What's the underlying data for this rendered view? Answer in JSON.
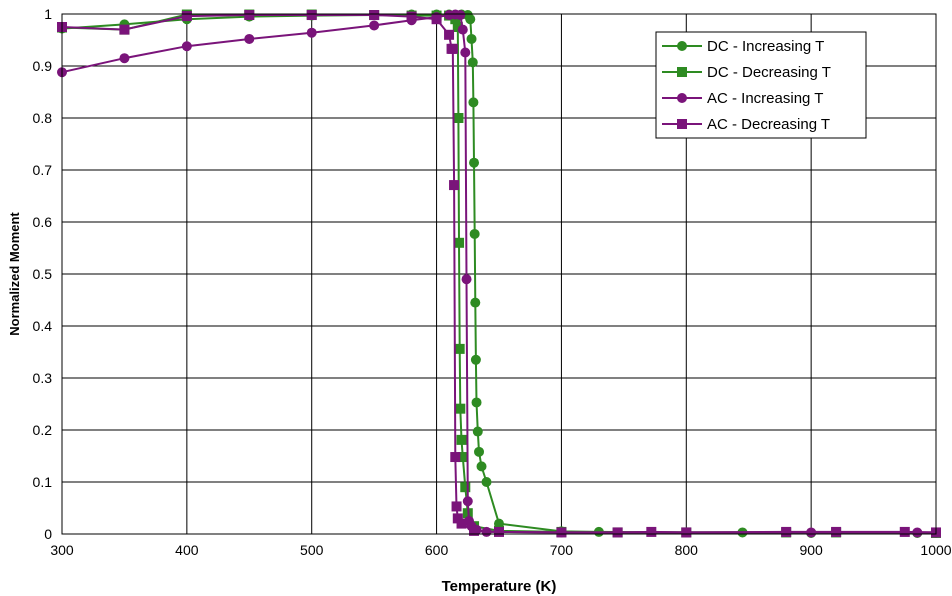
{
  "chart_data": {
    "type": "line",
    "xlabel": "Temperature (K)",
    "ylabel": "Normalized Moment",
    "xlim": [
      300,
      1000
    ],
    "ylim": [
      0,
      1
    ],
    "xticks": [
      "300",
      "400",
      "500",
      "600",
      "700",
      "800",
      "900",
      "1000"
    ],
    "yticks": [
      "0",
      "0.1",
      "0.2",
      "0.3",
      "0.4",
      "0.5",
      "0.6",
      "0.7",
      "0.8",
      "0.9",
      "1"
    ],
    "grid": true,
    "legend_position": "top-right",
    "series": [
      {
        "name": "DC - Increasing T",
        "color": "#2e8b22",
        "marker": "circle",
        "x": [
          300,
          350,
          400,
          450,
          500,
          550,
          580,
          600,
          610,
          620,
          625,
          627,
          628,
          629,
          629.5,
          630,
          630.5,
          631,
          631.5,
          632,
          633,
          634,
          636,
          640,
          650,
          700,
          730,
          800,
          845,
          900,
          985,
          1000
        ],
        "y": [
          0.972,
          0.98,
          0.99,
          0.995,
          0.997,
          0.998,
          0.999,
          0.999,
          0.999,
          0.999,
          0.998,
          0.99,
          0.952,
          0.907,
          0.83,
          0.714,
          0.577,
          0.445,
          0.335,
          0.253,
          0.197,
          0.158,
          0.13,
          0.1,
          0.02,
          0.005,
          0.004,
          0.003,
          0.003,
          0.002,
          0.002,
          0.002
        ]
      },
      {
        "name": "DC - Decreasing T",
        "color": "#2e8b22",
        "marker": "square",
        "x": [
          1000,
          920,
          880,
          800,
          745,
          700,
          650,
          630,
          625,
          623,
          621,
          620,
          619,
          618.5,
          618,
          617.5,
          617,
          615,
          610,
          600,
          580,
          550,
          500,
          450,
          400,
          350,
          300
        ],
        "y": [
          0.002,
          0.003,
          0.003,
          0.003,
          0.003,
          0.004,
          0.006,
          0.015,
          0.04,
          0.09,
          0.148,
          0.181,
          0.241,
          0.356,
          0.56,
          0.8,
          0.975,
          0.99,
          0.997,
          0.997,
          0.997,
          0.998,
          0.999,
          0.999,
          0.999,
          0.97,
          0.974
        ]
      },
      {
        "name": "AC - Increasing T",
        "color": "#7a147a",
        "marker": "circle",
        "x": [
          300,
          350,
          400,
          450,
          500,
          550,
          580,
          600,
          610,
          615,
          619,
          621,
          623,
          624,
          625,
          626,
          628,
          632,
          640,
          700,
          800,
          900,
          985,
          1000
        ],
        "y": [
          0.888,
          0.915,
          0.938,
          0.952,
          0.964,
          0.978,
          0.988,
          0.994,
          0.998,
          0.999,
          0.998,
          0.97,
          0.926,
          0.49,
          0.063,
          0.025,
          0.015,
          0.008,
          0.004,
          0.003,
          0.003,
          0.003,
          0.003,
          0.003
        ]
      },
      {
        "name": "AC - Decreasing T",
        "color": "#7a147a",
        "marker": "square",
        "x": [
          1000,
          975,
          920,
          880,
          800,
          772,
          745,
          700,
          650,
          630,
          620,
          617,
          616,
          615,
          614,
          613,
          612,
          610,
          600,
          580,
          550,
          500,
          450,
          400,
          350,
          300
        ],
        "y": [
          0.003,
          0.004,
          0.004,
          0.004,
          0.003,
          0.004,
          0.003,
          0.003,
          0.004,
          0.006,
          0.02,
          0.03,
          0.053,
          0.148,
          0.671,
          0.933,
          0.933,
          0.96,
          0.99,
          0.995,
          0.998,
          0.998,
          0.998,
          0.996,
          0.97,
          0.975
        ]
      }
    ]
  }
}
